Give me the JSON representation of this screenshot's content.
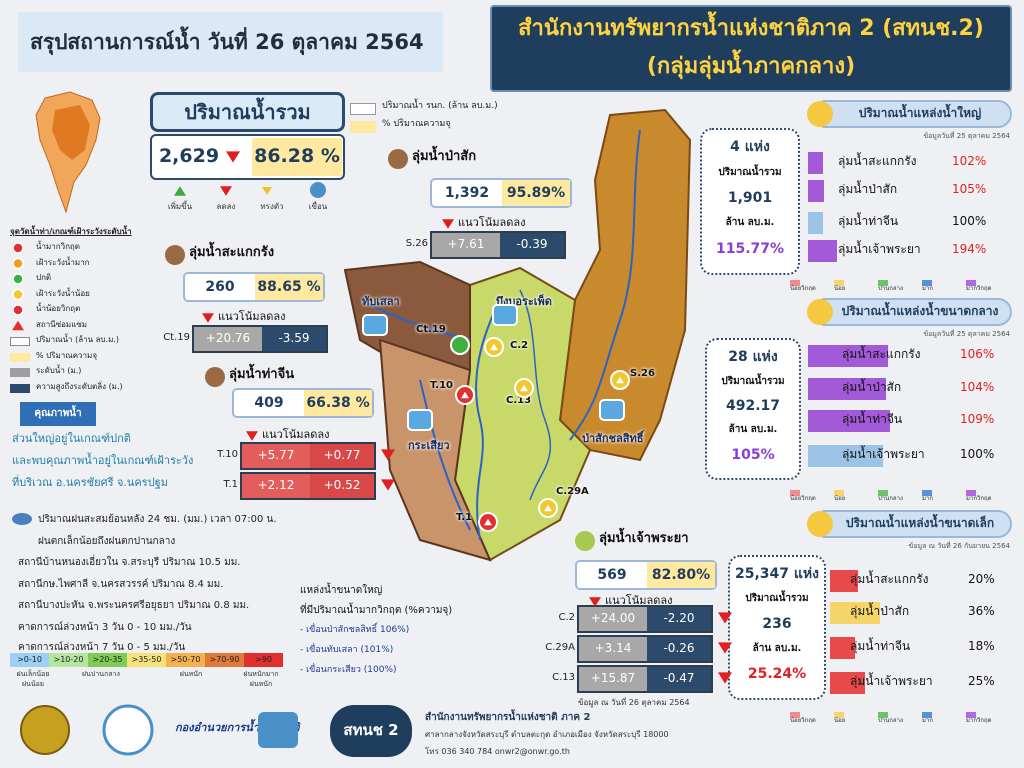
{
  "header": {
    "title": "สรุปสถานการณ์น้ำ วันที่   26 ตุลาคม 2564",
    "org_line1": "สำนักงานทรัพยากรน้ำแห่งชาติภาค 2 (สทนช.2)",
    "org_line2": "(กลุ่มลุ่มน้ำภาคกลาง)"
  },
  "total": {
    "label": "ปริมาณน้ำรวม",
    "volume": "2,629",
    "percent": "86.28 %"
  },
  "top_legend": [
    "ปริมาณน้ำ รนก. (ล้าน ลบ.ม.)",
    "% ปริมาณความจุ"
  ],
  "trend_icons": [
    "เพิ่มขึ้น",
    "ลดลง",
    "ทรงตัว",
    "เขื่อน"
  ],
  "status_legend": {
    "title": "จุดวัดน้ำท่า/เกณฑ์เฝ้าระวังระดับน้ำ",
    "items": [
      "น้ำมากวิกฤต",
      "เฝ้าระวังน้ำมาก",
      "ปกติ",
      "เฝ้าระวังน้ำน้อย",
      "น้ำน้อยวิกฤต",
      "สถานีซ่อมแซม",
      "ปริมาณน้ำ (ล้าน ลบ.ม.)",
      "% ปริมาณความจุ",
      "ระดับน้ำ (ม.)",
      "ความสูงถึงระดับตลิ่ง (ม.)"
    ]
  },
  "water_quality": {
    "title": "คุณภาพน้ำ",
    "lines": [
      "ส่วนใหญ่อยู่ในเกณฑ์ปกติ",
      "และพบคุณภาพน้ำอยู่ในเกณฑ์เฝ้าระวัง",
      "ที่บริเวณ อ.นครชัยศรี จ.นครปฐม"
    ]
  },
  "rain": {
    "lines": [
      "ปริมาณฝนสะสมย้อนหลัง 24 ชม. (มม.) เวลา 07:00 น.",
      "ฝนตกเล็กน้อยถึงฝนตกปานกลาง",
      "สถานีบ้านหนองเอี่ยวใน จ.สระบุรี ปริมาณ 10.5 มม.",
      "สถานีกษ.ไพศาลี จ.นครสวรรค์ ปริมาณ 8.4 มม.",
      "สถานีบางปะหัน จ.พระนครศรีอยุธยา ปริมาณ 0.8 มม.",
      "คาดการณ์ล่วงหน้า 3 วัน  0 - 10 มม./วัน",
      "คาดการณ์ล่วงหน้า 7 วัน  0 - 5 มม./วัน"
    ]
  },
  "rain_scale": {
    "ranges": [
      ">0-10",
      ">10-20",
      ">20-35",
      ">35-50",
      ">50-70",
      ">70-90",
      ">90"
    ],
    "groups": [
      [
        "ฝนเล็กน้อย",
        "ฝนน้อย"
      ],
      [
        "ฝนปานกลาง"
      ],
      [
        "ฝนหนัก"
      ],
      [
        "ฝนหนักมาก",
        "ฝนหนัก"
      ]
    ]
  },
  "basins": [
    {
      "name": "ลุ่มน้ำสะแกกรัง",
      "volume": "260",
      "percent": "88.65 %",
      "trend": "แนวโน้มลดลง",
      "stations": [
        {
          "code": "Ct.19",
          "level": "+20.76",
          "bank": "-3.59"
        }
      ]
    },
    {
      "name": "ลุ่มน้ำท่าจีน",
      "volume": "409",
      "percent": "66.38 %",
      "trend": "แนวโน้มลดลง",
      "stations": [
        {
          "code": "T.10",
          "level": "+5.77",
          "bank": "+0.77"
        },
        {
          "code": "T.1",
          "level": "+2.12",
          "bank": "+0.52"
        }
      ]
    },
    {
      "name": "ลุ่มน้ำป่าสัก",
      "volume": "1,392",
      "percent": "95.89%",
      "trend": "แนวโน้มลดลง",
      "stations": [
        {
          "code": "S.26",
          "level": "+7.61",
          "bank": "-0.39"
        }
      ]
    },
    {
      "name": "ลุ่มน้ำเจ้าพระยา",
      "volume": "569",
      "percent": "82.80%",
      "trend": "แนวโน้มลดลง",
      "stations": [
        {
          "code": "C.2",
          "level": "+24.00",
          "bank": "-2.20"
        },
        {
          "code": "C.29A",
          "level": "+3.14",
          "bank": "-0.26"
        },
        {
          "code": "C.13",
          "level": "+15.87",
          "bank": "-0.47"
        }
      ],
      "note": "ข้อมูล ณ วันที่ 26 ตุลาคม 2564"
    }
  ],
  "map_labels": [
    "ทับเสลา",
    "บึงบอระเพ็ด",
    "กระเสียว",
    "ป่าสักชลสิทธิ์",
    "Ct.19",
    "C.2",
    "T.10",
    "C.13",
    "S.26",
    "C.29A",
    "T.1"
  ],
  "critical": {
    "lines": [
      "แหล่งน้ำขนาดใหญ่",
      "ที่มีปริมาณน้ำมากวิกฤต (%ความจุ)",
      "- เขื่อนป่าสักชลสิทธิ์ 106%)",
      "- เขื่อนทับเสลา (101%)",
      "- เขื่อนกระเสียว (100%)"
    ]
  },
  "reservoirs": [
    {
      "title": "ปริมาณน้ำแหล่งน้ำใหญ่",
      "date": "ข้อมูลวันที่ 25 ตุลาคม 2564",
      "count": "4 แห่ง",
      "total_label": "ปริมาณน้ำรวม",
      "total": "1,901",
      "unit": "ล้าน ลบ.ม.",
      "percent": "115.77%",
      "items": [
        {
          "name": "ลุ่มน้ำสะแกกรัง",
          "value": 102,
          "label": "102%",
          "color": "#a35ad8"
        },
        {
          "name": "ลุ่มน้ำป่าสัก",
          "value": 105,
          "label": "105%",
          "color": "#a35ad8"
        },
        {
          "name": "ลุ่มน้ำท่าจีน",
          "value": 100,
          "label": "100%",
          "color": "#9cc3e6"
        },
        {
          "name": "ลุ่มน้ำเจ้าพระยา",
          "value": 194,
          "label": "194%",
          "color": "#a35ad8"
        }
      ]
    },
    {
      "title": "ปริมาณน้ำแหล่งน้ำขนาดกลาง",
      "date": "ข้อมูลวันที่ 25 ตุลาคม 2564",
      "count": "28 แห่ง",
      "total_label": "ปริมาณน้ำรวม",
      "total": "492.17",
      "unit": "ล้าน ลบ.ม.",
      "percent": "105%",
      "items": [
        {
          "name": "ลุ่มน้ำสะแกกรัง",
          "value": 106,
          "label": "106%",
          "color": "#a35ad8"
        },
        {
          "name": "ลุ่มน้ำป่าสัก",
          "value": 104,
          "label": "104%",
          "color": "#a35ad8"
        },
        {
          "name": "ลุ่มน้ำท่าจีน",
          "value": 109,
          "label": "109%",
          "color": "#a35ad8"
        },
        {
          "name": "ลุ่มน้ำเจ้าพระยา",
          "value": 100,
          "label": "100%",
          "color": "#9cc3e6"
        }
      ]
    },
    {
      "title": "ปริมาณน้ำแหล่งน้ำขนาดเล็ก",
      "date": "ข้อมูล ณ วันที่ 26 กันยายน 2564",
      "count": "25,347 แห่ง",
      "total_label": "ปริมาณน้ำรวม",
      "total": "236",
      "unit": "ล้าน ลบ.ม.",
      "percent": "25.24%",
      "items": [
        {
          "name": "ลุ่มน้ำสะแกกรัง",
          "value": 20,
          "label": "20%",
          "color": "#e84a4a"
        },
        {
          "name": "ลุ่มน้ำป่าสัก",
          "value": 36,
          "label": "36%",
          "color": "#f5d46a"
        },
        {
          "name": "ลุ่มน้ำท่าจีน",
          "value": 18,
          "label": "18%",
          "color": "#e84a4a"
        },
        {
          "name": "ลุ่มน้ำเจ้าพระยา",
          "value": 25,
          "label": "25%",
          "color": "#e84a4a"
        }
      ]
    }
  ],
  "level_legend": [
    "น้อยวิกฤต",
    "น้อย",
    "ปานกลาง",
    "มาก",
    "มากวิกฤต"
  ],
  "footer": {
    "logo_text": "กองอำนวยการน้ำแห่งชาติ",
    "badge": "สทนช 2",
    "org": "สำนักงานทรัพยากรน้ำแห่งชาติ ภาค 2",
    "address": "ศาลากลางจังหวัดสระบุรี ตำบลตะกุด อำเภอเมือง จังหวัดสระบุรี 18000",
    "contact": "โทร 036 340 784   onwr2@onwr.go.th"
  }
}
